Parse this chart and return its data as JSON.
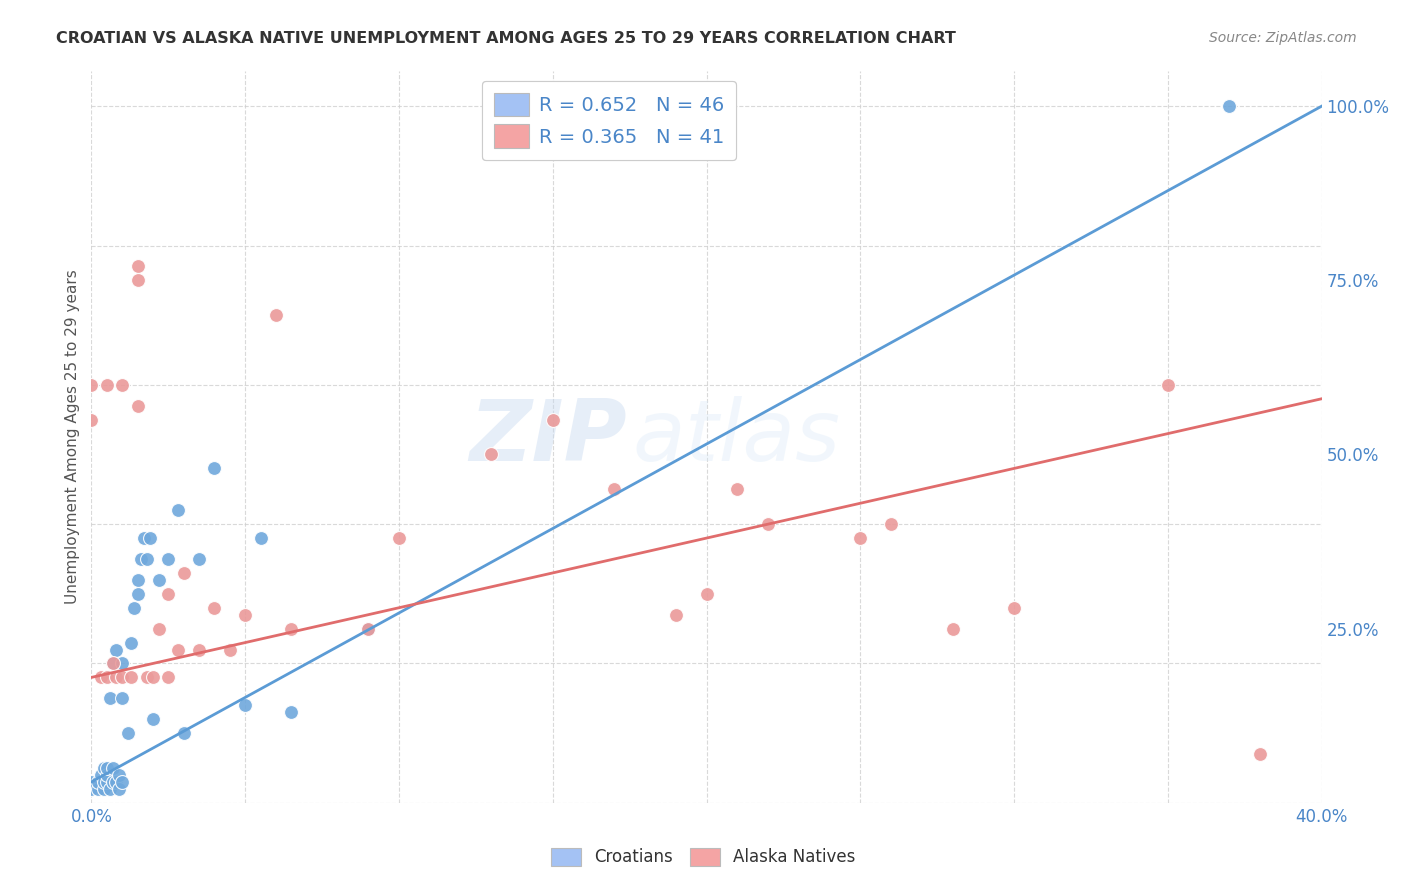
{
  "title": "CROATIAN VS ALASKA NATIVE UNEMPLOYMENT AMONG AGES 25 TO 29 YEARS CORRELATION CHART",
  "source": "Source: ZipAtlas.com",
  "ylabel": "Unemployment Among Ages 25 to 29 years",
  "xlim": [
    0.0,
    0.4
  ],
  "ylim": [
    0.0,
    1.05
  ],
  "x_ticks": [
    0.0,
    0.05,
    0.1,
    0.15,
    0.2,
    0.25,
    0.3,
    0.35,
    0.4
  ],
  "x_tick_labels": [
    "0.0%",
    "",
    "",
    "",
    "",
    "",
    "",
    "",
    "40.0%"
  ],
  "y_ticks_right": [
    0.25,
    0.5,
    0.75,
    1.0
  ],
  "y_tick_labels_right": [
    "25.0%",
    "50.0%",
    "75.0%",
    "100.0%"
  ],
  "croatian_color": "#6fa8dc",
  "alaska_color": "#ea9999",
  "line_croatian_color": "#5b9bd5",
  "line_alaska_color": "#e06c6c",
  "croatian_R": 0.652,
  "croatian_N": 46,
  "alaska_R": 0.365,
  "alaska_N": 41,
  "watermark": "ZIPatlas",
  "croatian_line_x": [
    0.0,
    0.4
  ],
  "croatian_line_y": [
    0.03,
    1.0
  ],
  "alaska_line_x": [
    0.0,
    0.4
  ],
  "alaska_line_y": [
    0.18,
    0.58
  ],
  "croatian_scatter_x": [
    0.0,
    0.0,
    0.002,
    0.002,
    0.003,
    0.004,
    0.004,
    0.004,
    0.005,
    0.005,
    0.005,
    0.006,
    0.006,
    0.007,
    0.007,
    0.007,
    0.008,
    0.008,
    0.009,
    0.009,
    0.01,
    0.01,
    0.01,
    0.012,
    0.013,
    0.014,
    0.015,
    0.015,
    0.016,
    0.017,
    0.018,
    0.019,
    0.02,
    0.022,
    0.025,
    0.028,
    0.03,
    0.035,
    0.04,
    0.05,
    0.055,
    0.065,
    0.09,
    0.15,
    0.17,
    0.37
  ],
  "croatian_scatter_y": [
    0.02,
    0.03,
    0.02,
    0.03,
    0.04,
    0.02,
    0.03,
    0.05,
    0.03,
    0.04,
    0.05,
    0.02,
    0.15,
    0.03,
    0.05,
    0.2,
    0.03,
    0.22,
    0.02,
    0.04,
    0.03,
    0.15,
    0.2,
    0.1,
    0.23,
    0.28,
    0.3,
    0.32,
    0.35,
    0.38,
    0.35,
    0.38,
    0.12,
    0.32,
    0.35,
    0.42,
    0.1,
    0.35,
    0.48,
    0.14,
    0.38,
    0.13,
    0.25,
    0.97,
    0.97,
    1.0
  ],
  "alaska_scatter_x": [
    0.0,
    0.0,
    0.003,
    0.005,
    0.005,
    0.007,
    0.008,
    0.01,
    0.01,
    0.013,
    0.015,
    0.015,
    0.015,
    0.018,
    0.02,
    0.022,
    0.025,
    0.025,
    0.028,
    0.03,
    0.035,
    0.04,
    0.045,
    0.05,
    0.06,
    0.065,
    0.09,
    0.1,
    0.13,
    0.15,
    0.17,
    0.19,
    0.2,
    0.21,
    0.22,
    0.25,
    0.26,
    0.28,
    0.3,
    0.35,
    0.38
  ],
  "alaska_scatter_y": [
    0.55,
    0.6,
    0.18,
    0.18,
    0.6,
    0.2,
    0.18,
    0.6,
    0.18,
    0.18,
    0.77,
    0.75,
    0.57,
    0.18,
    0.18,
    0.25,
    0.18,
    0.3,
    0.22,
    0.33,
    0.22,
    0.28,
    0.22,
    0.27,
    0.7,
    0.25,
    0.25,
    0.38,
    0.5,
    0.55,
    0.45,
    0.27,
    0.3,
    0.45,
    0.4,
    0.38,
    0.4,
    0.25,
    0.28,
    0.6,
    0.07
  ],
  "bg_color": "#ffffff",
  "grid_color": "#d0d0d0",
  "legend_box_color_croatian": "#a4c2f4",
  "legend_box_color_alaska": "#f4a4a4"
}
